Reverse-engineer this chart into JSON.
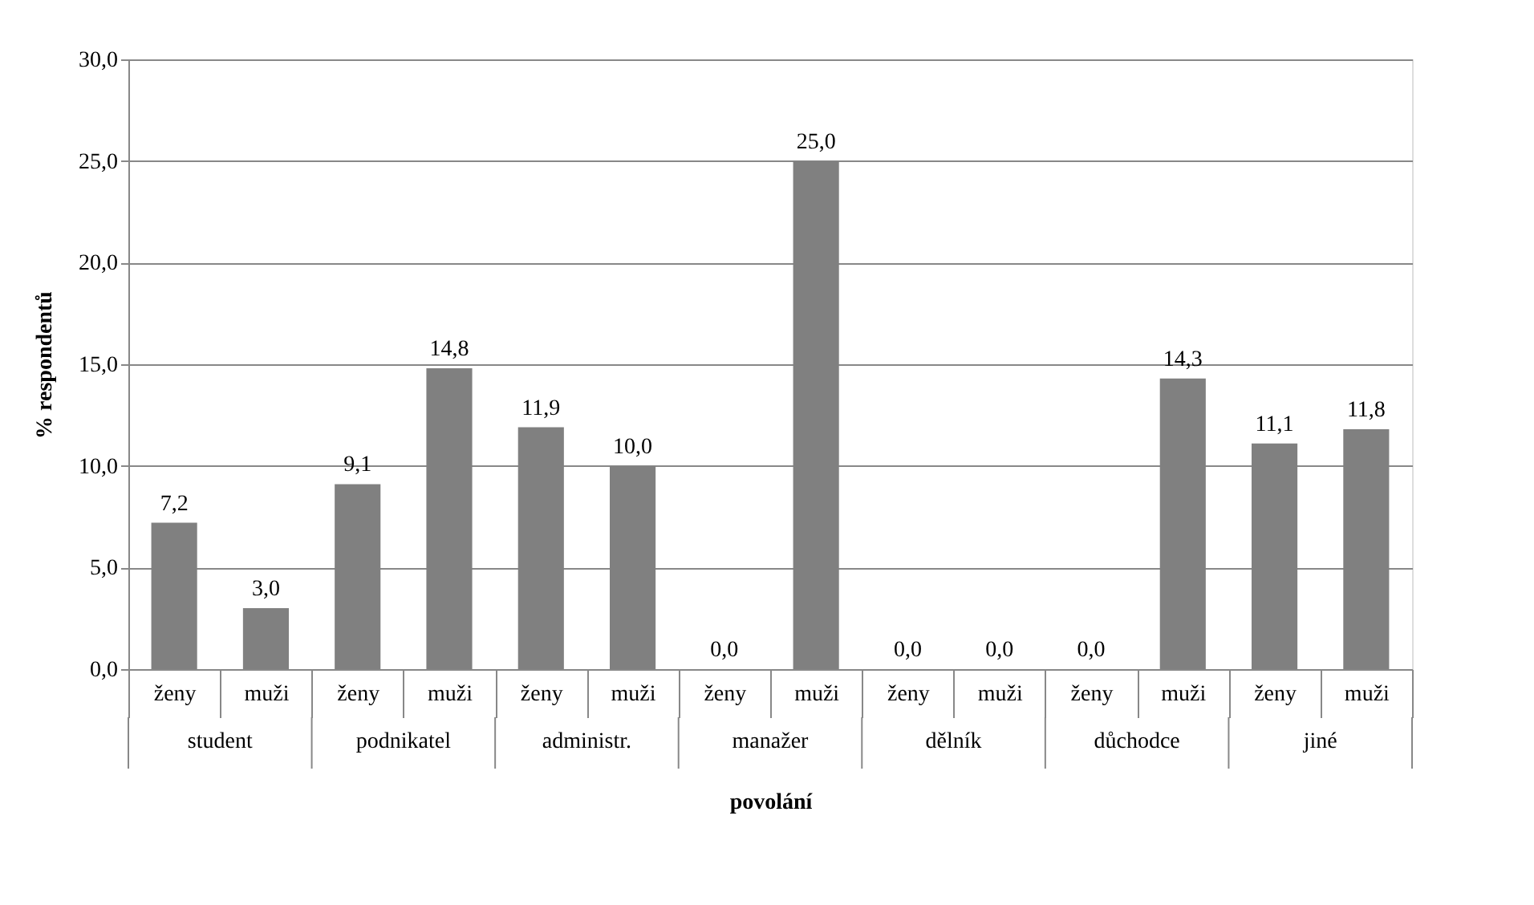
{
  "chart_data": {
    "type": "bar",
    "xlabel": "povolání",
    "ylabel": "% respondentů",
    "categories": [
      "ženy",
      "muži",
      "ženy",
      "muži",
      "ženy",
      "muži",
      "ženy",
      "muži",
      "ženy",
      "muži",
      "ženy",
      "muži",
      "ženy",
      "muži"
    ],
    "annotations": [
      "student",
      "podnikatel",
      "administr.",
      "manažer",
      "dělník",
      "důchodce",
      "jiné"
    ],
    "values": [
      7.2,
      3.0,
      9.1,
      14.8,
      11.9,
      10.0,
      0.0,
      25.0,
      0.0,
      0.0,
      0.0,
      14.3,
      11.1,
      11.8
    ],
    "value_labels": [
      "7,2",
      "3,0",
      "9,1",
      "14,8",
      "11,9",
      "10,0",
      "0,0",
      "25,0",
      "0,0",
      "0,0",
      "0,0",
      "14,3",
      "11,1",
      "11,8"
    ],
    "color": "#808080",
    "ylim": [
      0,
      30
    ],
    "yticks": [
      {
        "value": 0,
        "label": "0,0"
      },
      {
        "value": 5,
        "label": "5,0"
      },
      {
        "value": 10,
        "label": "10,0"
      },
      {
        "value": 15,
        "label": "15,0"
      },
      {
        "value": 20,
        "label": "20,0"
      },
      {
        "value": 25,
        "label": "25,0"
      },
      {
        "value": 30,
        "label": "30,0"
      }
    ],
    "grid": "y"
  }
}
